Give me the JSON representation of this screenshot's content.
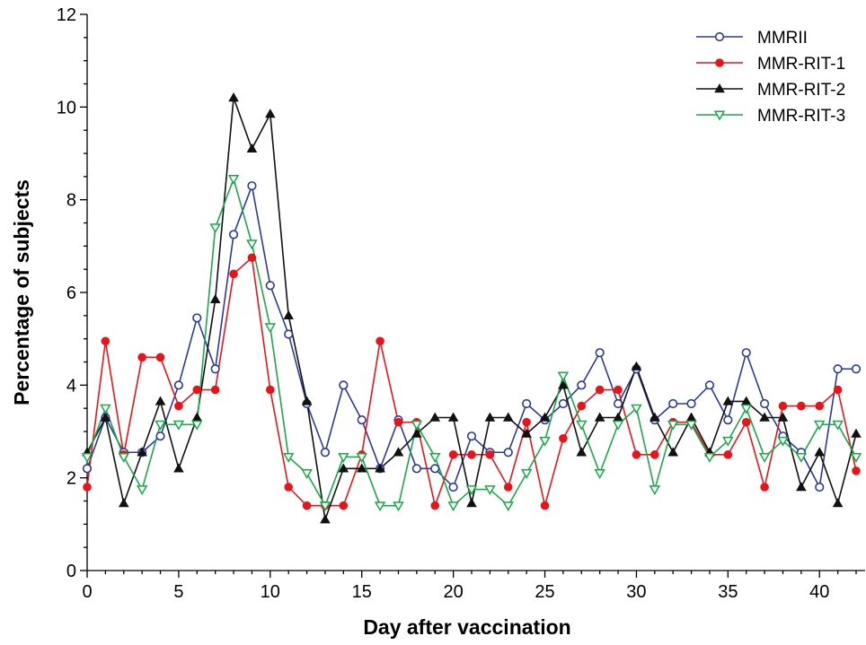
{
  "chart_data": {
    "type": "line",
    "xlabel": "Day after vaccination",
    "ylabel": "Percentage of subjects",
    "xlim": [
      0,
      42
    ],
    "ylim": [
      0,
      12
    ],
    "xticks": [
      0,
      5,
      10,
      15,
      20,
      25,
      30,
      35,
      40
    ],
    "yticks": [
      0,
      2,
      4,
      6,
      8,
      10,
      12
    ],
    "grid": false,
    "legend": "top-right",
    "x": [
      0,
      1,
      2,
      3,
      4,
      5,
      6,
      7,
      8,
      9,
      10,
      11,
      12,
      13,
      14,
      15,
      16,
      17,
      18,
      19,
      20,
      21,
      22,
      23,
      24,
      25,
      26,
      27,
      28,
      29,
      30,
      31,
      32,
      33,
      34,
      35,
      36,
      37,
      38,
      39,
      40,
      41,
      42
    ],
    "series": [
      {
        "name": "MMRII",
        "color": "#2b3a9a",
        "marker": "circle-open",
        "values": [
          2.2,
          3.3,
          2.55,
          2.55,
          2.9,
          4.0,
          5.45,
          4.35,
          7.25,
          8.3,
          6.15,
          5.1,
          3.6,
          2.55,
          4.0,
          3.25,
          2.2,
          3.25,
          2.2,
          2.2,
          1.8,
          2.9,
          2.55,
          2.55,
          3.6,
          3.25,
          3.6,
          4.0,
          4.7,
          3.6,
          4.35,
          3.25,
          3.6,
          3.6,
          4.0,
          3.25,
          4.7,
          3.6,
          2.9,
          2.55,
          1.8,
          4.35,
          4.35
        ]
      },
      {
        "name": "MMR-RIT-1",
        "color": "#e8141a",
        "marker": "circle-filled",
        "values": [
          1.8,
          4.95,
          2.5,
          4.6,
          4.6,
          3.55,
          3.9,
          3.9,
          6.4,
          6.75,
          3.9,
          1.8,
          1.4,
          1.4,
          1.4,
          2.5,
          4.95,
          3.2,
          3.2,
          1.4,
          2.5,
          2.5,
          2.5,
          1.8,
          3.2,
          1.4,
          2.85,
          3.55,
          3.9,
          3.9,
          2.5,
          2.5,
          3.2,
          3.2,
          2.5,
          2.5,
          3.2,
          1.8,
          3.55,
          3.55,
          3.55,
          3.9,
          2.15
        ]
      },
      {
        "name": "MMR-RIT-2",
        "color": "#111111",
        "marker": "triangle-up-filled",
        "values": [
          2.55,
          3.3,
          1.45,
          2.55,
          3.65,
          2.2,
          3.3,
          5.85,
          10.2,
          9.1,
          9.85,
          5.5,
          3.65,
          1.1,
          2.2,
          2.2,
          2.2,
          2.55,
          2.95,
          3.3,
          3.3,
          1.45,
          3.3,
          3.3,
          2.95,
          3.3,
          4.0,
          2.55,
          3.3,
          3.3,
          4.4,
          3.3,
          2.55,
          3.3,
          2.55,
          3.65,
          3.65,
          3.3,
          3.3,
          1.8,
          2.55,
          1.45,
          2.95
        ]
      },
      {
        "name": "MMR-RIT-3",
        "color": "#19a84a",
        "marker": "triangle-down-open",
        "values": [
          2.45,
          3.5,
          2.45,
          1.75,
          3.15,
          3.15,
          3.15,
          7.4,
          8.45,
          7.05,
          5.25,
          2.45,
          2.1,
          1.4,
          2.45,
          2.45,
          1.4,
          1.4,
          3.15,
          2.45,
          1.4,
          1.75,
          1.75,
          1.4,
          2.1,
          2.8,
          4.2,
          3.15,
          2.1,
          3.15,
          3.5,
          1.75,
          3.15,
          3.15,
          2.45,
          2.8,
          3.5,
          2.45,
          2.8,
          2.45,
          3.15,
          3.15,
          2.45
        ]
      }
    ]
  }
}
